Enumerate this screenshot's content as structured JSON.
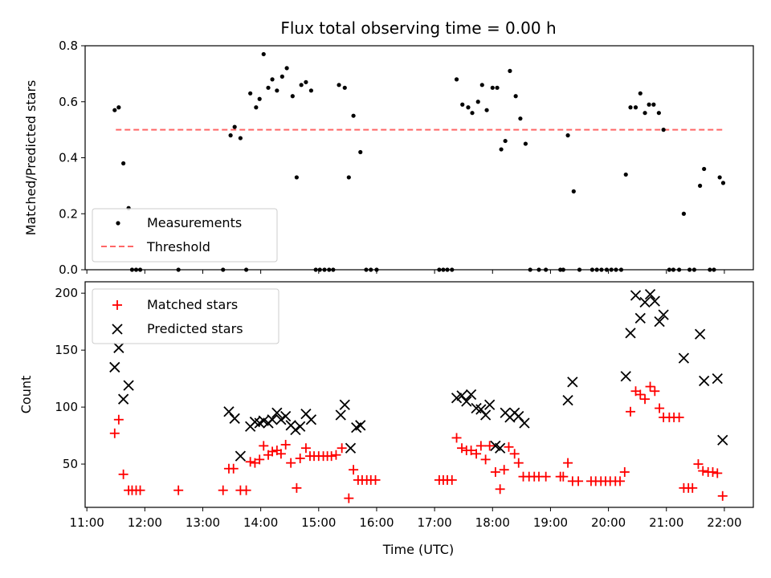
{
  "title": "Flux total observing time = 0.00 h",
  "colors": {
    "measurement": "#000000",
    "threshold": "#ff6666",
    "matched": "#ff0000",
    "predicted": "#000000"
  },
  "chart_data": [
    {
      "type": "scatter",
      "ylabel": "Matched/Predicted stars",
      "xlabel": "",
      "xlim": [
        10.97,
        22.5
      ],
      "ylim": [
        0,
        0.8
      ],
      "yticks": [
        "0.0",
        "0.2",
        "0.4",
        "0.6",
        "0.8"
      ],
      "legend": {
        "placement": "lower-left",
        "entries": [
          "Measurements",
          "Threshold"
        ]
      },
      "threshold": {
        "name": "Threshold",
        "y": 0.5,
        "x": [
          11.5,
          22.0
        ]
      },
      "series": [
        {
          "name": "Measurements",
          "points": [
            [
              11.48,
              0.57
            ],
            [
              11.55,
              0.58
            ],
            [
              11.63,
              0.38
            ],
            [
              11.72,
              0.22
            ],
            [
              11.78,
              0.0
            ],
            [
              11.85,
              0.0
            ],
            [
              11.92,
              0.0
            ],
            [
              12.58,
              0.0
            ],
            [
              13.35,
              0.0
            ],
            [
              13.48,
              0.48
            ],
            [
              13.55,
              0.51
            ],
            [
              13.65,
              0.47
            ],
            [
              13.75,
              0.0
            ],
            [
              13.82,
              0.63
            ],
            [
              13.92,
              0.58
            ],
            [
              13.98,
              0.61
            ],
            [
              14.05,
              0.77
            ],
            [
              14.13,
              0.65
            ],
            [
              14.2,
              0.68
            ],
            [
              14.28,
              0.64
            ],
            [
              14.37,
              0.69
            ],
            [
              14.45,
              0.72
            ],
            [
              14.55,
              0.62
            ],
            [
              14.62,
              0.33
            ],
            [
              14.7,
              0.66
            ],
            [
              14.78,
              0.67
            ],
            [
              14.87,
              0.64
            ],
            [
              14.95,
              0.0
            ],
            [
              15.02,
              0.0
            ],
            [
              15.1,
              0.0
            ],
            [
              15.18,
              0.0
            ],
            [
              15.25,
              0.0
            ],
            [
              15.35,
              0.66
            ],
            [
              15.45,
              0.65
            ],
            [
              15.52,
              0.33
            ],
            [
              15.6,
              0.55
            ],
            [
              15.72,
              0.42
            ],
            [
              15.82,
              0.0
            ],
            [
              15.9,
              0.0
            ],
            [
              16.0,
              0.0
            ],
            [
              17.08,
              0.0
            ],
            [
              17.15,
              0.0
            ],
            [
              17.22,
              0.0
            ],
            [
              17.3,
              0.0
            ],
            [
              17.38,
              0.68
            ],
            [
              17.48,
              0.59
            ],
            [
              17.58,
              0.58
            ],
            [
              17.65,
              0.56
            ],
            [
              17.75,
              0.6
            ],
            [
              17.82,
              0.66
            ],
            [
              17.9,
              0.57
            ],
            [
              18.0,
              0.65
            ],
            [
              18.08,
              0.65
            ],
            [
              18.15,
              0.43
            ],
            [
              18.22,
              0.46
            ],
            [
              18.3,
              0.71
            ],
            [
              18.4,
              0.62
            ],
            [
              18.48,
              0.54
            ],
            [
              18.57,
              0.45
            ],
            [
              18.65,
              0.0
            ],
            [
              18.8,
              0.0
            ],
            [
              18.92,
              0.0
            ],
            [
              19.17,
              0.0
            ],
            [
              19.22,
              0.0
            ],
            [
              19.3,
              0.48
            ],
            [
              19.4,
              0.28
            ],
            [
              19.5,
              0.0
            ],
            [
              19.72,
              0.0
            ],
            [
              19.8,
              0.0
            ],
            [
              19.88,
              0.0
            ],
            [
              19.97,
              0.0
            ],
            [
              20.05,
              0.0
            ],
            [
              20.13,
              0.0
            ],
            [
              20.22,
              0.0
            ],
            [
              20.3,
              0.34
            ],
            [
              20.38,
              0.58
            ],
            [
              20.47,
              0.58
            ],
            [
              20.55,
              0.63
            ],
            [
              20.63,
              0.56
            ],
            [
              20.7,
              0.59
            ],
            [
              20.78,
              0.59
            ],
            [
              20.87,
              0.56
            ],
            [
              20.95,
              0.5
            ],
            [
              21.05,
              0.0
            ],
            [
              21.12,
              0.0
            ],
            [
              21.22,
              0.0
            ],
            [
              21.3,
              0.2
            ],
            [
              21.4,
              0.0
            ],
            [
              21.48,
              0.0
            ],
            [
              21.58,
              0.3
            ],
            [
              21.65,
              0.36
            ],
            [
              21.75,
              0.0
            ],
            [
              21.82,
              0.0
            ],
            [
              21.92,
              0.33
            ],
            [
              21.98,
              0.31
            ]
          ]
        }
      ]
    },
    {
      "type": "scatter",
      "ylabel": "Count",
      "xlabel": "Time (UTC)",
      "xlim": [
        10.97,
        22.5
      ],
      "ylim": [
        12,
        210
      ],
      "yticks": [
        50,
        100,
        150,
        200
      ],
      "xtick_values": [
        11,
        12,
        13,
        14,
        15,
        16,
        17,
        18,
        19,
        20,
        21,
        22
      ],
      "xtick_labels": [
        "11:00",
        "12:00",
        "13:00",
        "14:00",
        "15:00",
        "16:00",
        "17:00",
        "18:00",
        "19:00",
        "20:00",
        "21:00",
        "22:00"
      ],
      "legend": {
        "placement": "upper-left",
        "entries": [
          "Matched stars",
          "Predicted stars"
        ]
      },
      "series": [
        {
          "name": "Matched stars",
          "marker": "+",
          "points": [
            [
              11.48,
              77
            ],
            [
              11.55,
              89
            ],
            [
              11.63,
              41
            ],
            [
              11.72,
              27
            ],
            [
              11.78,
              27
            ],
            [
              11.85,
              27
            ],
            [
              11.92,
              27
            ],
            [
              12.58,
              27
            ],
            [
              13.35,
              27
            ],
            [
              13.45,
              46
            ],
            [
              13.53,
              46
            ],
            [
              13.65,
              27
            ],
            [
              13.75,
              27
            ],
            [
              13.82,
              52
            ],
            [
              13.9,
              51
            ],
            [
              13.98,
              54
            ],
            [
              14.05,
              66
            ],
            [
              14.13,
              58
            ],
            [
              14.2,
              61
            ],
            [
              14.28,
              62
            ],
            [
              14.35,
              59
            ],
            [
              14.43,
              67
            ],
            [
              14.52,
              51
            ],
            [
              14.62,
              29
            ],
            [
              14.68,
              55
            ],
            [
              14.78,
              64
            ],
            [
              14.85,
              57
            ],
            [
              14.92,
              57
            ],
            [
              15.0,
              57
            ],
            [
              15.08,
              57
            ],
            [
              15.15,
              57
            ],
            [
              15.22,
              57
            ],
            [
              15.3,
              58
            ],
            [
              15.4,
              64
            ],
            [
              15.52,
              20
            ],
            [
              15.6,
              45
            ],
            [
              15.68,
              36
            ],
            [
              15.75,
              36
            ],
            [
              15.83,
              36
            ],
            [
              15.9,
              36
            ],
            [
              15.98,
              36
            ],
            [
              17.08,
              36
            ],
            [
              17.15,
              36
            ],
            [
              17.22,
              36
            ],
            [
              17.3,
              36
            ],
            [
              17.38,
              73
            ],
            [
              17.47,
              64
            ],
            [
              17.55,
              62
            ],
            [
              17.63,
              62
            ],
            [
              17.72,
              59
            ],
            [
              17.8,
              66
            ],
            [
              17.88,
              54
            ],
            [
              17.95,
              66
            ],
            [
              18.05,
              43
            ],
            [
              18.13,
              28
            ],
            [
              18.2,
              45
            ],
            [
              18.28,
              65
            ],
            [
              18.38,
              59
            ],
            [
              18.45,
              51
            ],
            [
              18.53,
              39
            ],
            [
              18.63,
              39
            ],
            [
              18.72,
              39
            ],
            [
              18.8,
              39
            ],
            [
              18.92,
              39
            ],
            [
              19.17,
              39
            ],
            [
              19.22,
              39
            ],
            [
              19.3,
              51
            ],
            [
              19.38,
              35
            ],
            [
              19.48,
              35
            ],
            [
              19.7,
              35
            ],
            [
              19.78,
              35
            ],
            [
              19.87,
              35
            ],
            [
              19.95,
              35
            ],
            [
              20.03,
              35
            ],
            [
              20.12,
              35
            ],
            [
              20.2,
              35
            ],
            [
              20.28,
              43
            ],
            [
              20.38,
              96
            ],
            [
              20.47,
              114
            ],
            [
              20.55,
              111
            ],
            [
              20.63,
              107
            ],
            [
              20.72,
              118
            ],
            [
              20.8,
              114
            ],
            [
              20.88,
              99
            ],
            [
              20.95,
              91
            ],
            [
              21.05,
              91
            ],
            [
              21.13,
              91
            ],
            [
              21.22,
              91
            ],
            [
              21.3,
              29
            ],
            [
              21.38,
              29
            ],
            [
              21.45,
              29
            ],
            [
              21.55,
              50
            ],
            [
              21.63,
              44
            ],
            [
              21.72,
              43
            ],
            [
              21.8,
              43
            ],
            [
              21.88,
              42
            ],
            [
              21.97,
              22
            ]
          ]
        },
        {
          "name": "Predicted stars",
          "marker": "x",
          "points": [
            [
              11.48,
              135
            ],
            [
              11.55,
              152
            ],
            [
              11.63,
              107
            ],
            [
              11.72,
              119
            ],
            [
              13.45,
              96
            ],
            [
              13.55,
              90
            ],
            [
              13.65,
              57
            ],
            [
              13.82,
              83
            ],
            [
              13.9,
              87
            ],
            [
              13.98,
              86
            ],
            [
              14.05,
              88
            ],
            [
              14.13,
              86
            ],
            [
              14.2,
              89
            ],
            [
              14.28,
              95
            ],
            [
              14.35,
              89
            ],
            [
              14.43,
              92
            ],
            [
              14.52,
              84
            ],
            [
              14.6,
              80
            ],
            [
              14.68,
              83
            ],
            [
              14.78,
              94
            ],
            [
              14.87,
              89
            ],
            [
              15.38,
              93
            ],
            [
              15.45,
              102
            ],
            [
              15.55,
              64
            ],
            [
              15.65,
              82
            ],
            [
              15.72,
              84
            ],
            [
              17.38,
              108
            ],
            [
              17.47,
              110
            ],
            [
              17.55,
              105
            ],
            [
              17.63,
              111
            ],
            [
              17.72,
              99
            ],
            [
              17.8,
              98
            ],
            [
              17.88,
              93
            ],
            [
              17.95,
              102
            ],
            [
              18.05,
              66
            ],
            [
              18.13,
              64
            ],
            [
              18.22,
              95
            ],
            [
              18.3,
              91
            ],
            [
              18.38,
              95
            ],
            [
              18.45,
              92
            ],
            [
              18.55,
              86
            ],
            [
              19.3,
              106
            ],
            [
              19.38,
              122
            ],
            [
              20.3,
              127
            ],
            [
              20.38,
              165
            ],
            [
              20.47,
              198
            ],
            [
              20.55,
              178
            ],
            [
              20.63,
              192
            ],
            [
              20.72,
              199
            ],
            [
              20.8,
              193
            ],
            [
              20.88,
              175
            ],
            [
              20.95,
              181
            ],
            [
              21.3,
              143
            ],
            [
              21.58,
              164
            ],
            [
              21.65,
              123
            ],
            [
              21.88,
              125
            ],
            [
              21.97,
              71
            ]
          ]
        }
      ]
    }
  ]
}
